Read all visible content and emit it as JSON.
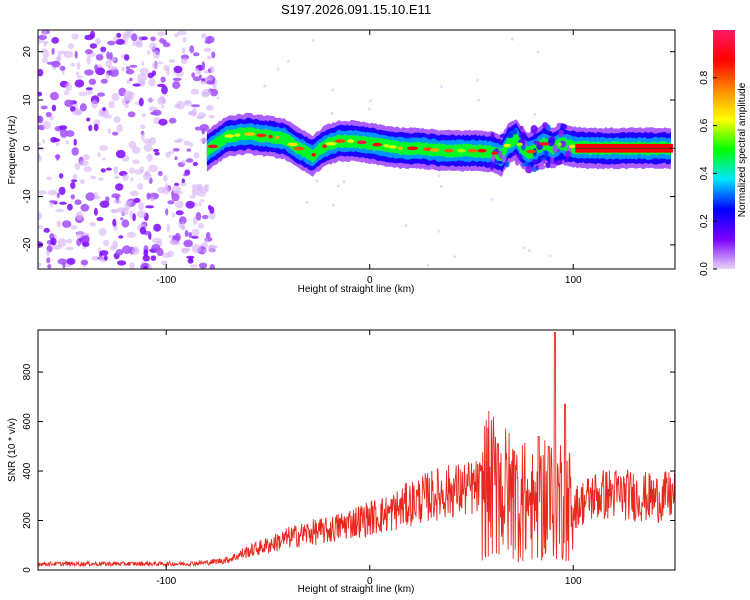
{
  "title": "S197.2026.091.15.10.E11",
  "chart_data": [
    {
      "type": "heatmap",
      "xlabel": "Height of straight line (km)",
      "ylabel": "Frequency (Hz)",
      "xlim": [
        -163,
        150
      ],
      "ylim": [
        -25,
        24.5
      ],
      "xticks": [
        -100,
        0,
        100
      ],
      "yticks": [
        -20,
        -10,
        0,
        10,
        20
      ],
      "colorbar": {
        "label": "Normalized spectral amplitude",
        "range": [
          0,
          1
        ],
        "ticks": [
          0.0,
          0.2,
          0.4,
          0.6,
          0.8
        ],
        "colors": [
          "#e9d5f6",
          "#7a00ff",
          "#0000ff",
          "#00e5ff",
          "#00ff00",
          "#ffff00",
          "#ff8800",
          "#ff0000",
          "#ff1a66"
        ]
      },
      "noise_region_x": [
        -163,
        -80
      ],
      "ridge": {
        "x": [
          -80,
          -75,
          -70,
          -60,
          -50,
          -42,
          -35,
          -28,
          -22,
          -15,
          -8,
          0,
          8,
          15,
          25,
          35,
          45,
          55,
          60,
          65,
          68,
          72,
          75,
          78,
          82,
          86,
          90,
          94,
          98,
          102,
          110,
          120,
          130,
          140,
          148
        ],
        "freq": [
          -0.5,
          1,
          2.5,
          3,
          2.5,
          2,
          0,
          -1.5,
          0.5,
          1.5,
          1.5,
          1,
          0.5,
          0,
          0,
          -0.5,
          -0.5,
          -0.5,
          -0.8,
          -1.5,
          1,
          2,
          0,
          -1,
          0,
          1,
          0,
          1,
          0.5,
          0.2,
          0,
          0,
          0,
          0,
          0
        ]
      },
      "grid": false
    },
    {
      "type": "line",
      "xlabel": "Height of straight line (km)",
      "ylabel": "SNR (10 * v/v)",
      "xlim": [
        -163,
        150
      ],
      "ylim": [
        0,
        970
      ],
      "xticks": [
        -100,
        0,
        100
      ],
      "yticks": [
        0,
        200,
        400,
        600,
        800
      ],
      "color": "#e8281e",
      "envelope": {
        "x": [
          -163,
          -120,
          -90,
          -80,
          -70,
          -60,
          -50,
          -40,
          -30,
          -20,
          -10,
          0,
          10,
          20,
          30,
          40,
          50,
          60,
          70,
          80,
          90,
          95,
          100,
          110,
          120,
          130,
          140,
          150
        ],
        "y": [
          25,
          25,
          25,
          30,
          40,
          75,
          100,
          130,
          150,
          160,
          190,
          210,
          230,
          270,
          300,
          320,
          330,
          340,
          300,
          260,
          280,
          300,
          250,
          300,
          310,
          300,
          290,
          300
        ]
      },
      "spikes": [
        {
          "x": 91,
          "y": 960
        },
        {
          "x": 96,
          "y": 670
        },
        {
          "x": 63,
          "y": 510
        },
        {
          "x": 71,
          "y": 480
        },
        {
          "x": 83,
          "y": 540
        },
        {
          "x": 88,
          "y": 500
        }
      ],
      "grid": false
    }
  ]
}
